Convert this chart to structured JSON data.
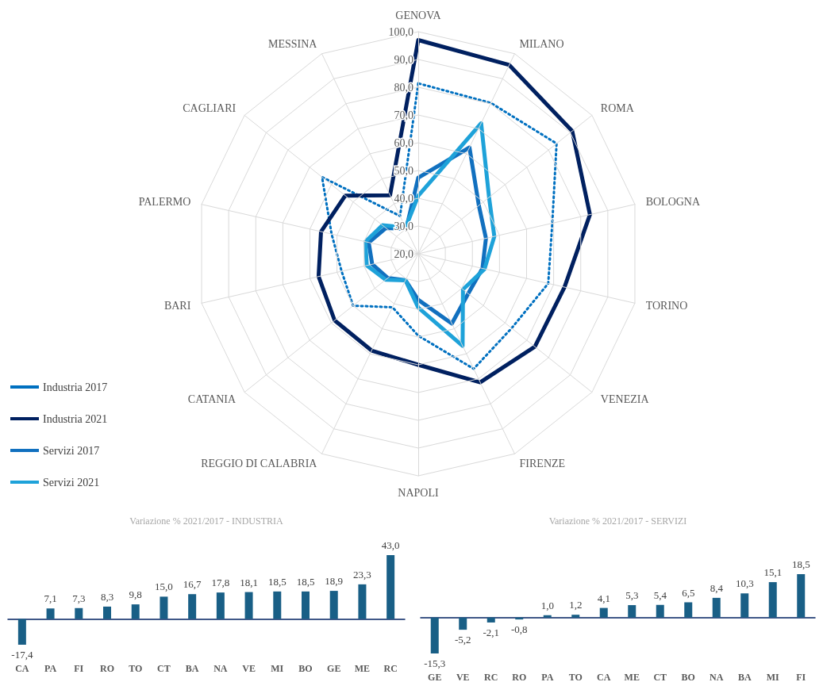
{
  "chart_data": [
    {
      "type": "radar",
      "categories": [
        "GENOVA",
        "MILANO",
        "ROMA",
        "BOLOGNA",
        "TORINO",
        "VENEZIA",
        "FIRENZE",
        "NAPOLI",
        "REGGIO DI CALABRIA",
        "CATANIA",
        "BARI",
        "PALERMO",
        "CAGLIARI",
        "MESSINA"
      ],
      "ylim": [
        20,
        100
      ],
      "yticks": [
        {
          "value": 20,
          "label": "20,0"
        },
        {
          "value": 30,
          "label": "30,0"
        },
        {
          "value": 40,
          "label": "40,0"
        },
        {
          "value": 50,
          "label": "50,0"
        },
        {
          "value": 60,
          "label": "60,0"
        },
        {
          "value": 70,
          "label": "70,0"
        },
        {
          "value": 80,
          "label": "80,0"
        },
        {
          "value": 90,
          "label": "90,0"
        },
        {
          "value": 100,
          "label": "100,0"
        }
      ],
      "grid": true,
      "legend": "left",
      "marker": "none",
      "series": [
        {
          "name": "Industria 2017",
          "color": "#0070c0",
          "line_style": "dotted",
          "values": [
            81.4,
            80.3,
            83.7,
            69.5,
            68,
            63,
            66,
            49.5,
            41.4,
            50,
            48.3,
            52,
            64.3,
            35.1
          ]
        },
        {
          "name": "Industria 2021",
          "color": "#002060",
          "line_style": "solid",
          "values": [
            97,
            95.5,
            90.9,
            83.4,
            74,
            73.7,
            71.4,
            60,
            58.7,
            58.5,
            56.8,
            55.9,
            53.6,
            43.4
          ]
        },
        {
          "name": "Servizi 2017",
          "color": "#1170bf",
          "line_style": "solid",
          "values": [
            47.4,
            62.5,
            47.9,
            45,
            43.7,
            43,
            47.9,
            36.6,
            30.6,
            34,
            37,
            38.3,
            34.9,
            30
          ]
        },
        {
          "name": "Servizi 2021",
          "color": "#1ea2d9",
          "line_style": "solid",
          "values": [
            40.9,
            72.2,
            52.6,
            48.1,
            44.5,
            40.6,
            56.8,
            39.4,
            30.6,
            35,
            39,
            39.5,
            36.5,
            30.5
          ]
        }
      ]
    },
    {
      "type": "bar",
      "title": "Variazione % 2021/2017 - INDUSTRIA",
      "categories": [
        "CA",
        "PA",
        "FI",
        "RO",
        "TO",
        "CT",
        "BA",
        "NA",
        "VE",
        "MI",
        "BO",
        "GE",
        "ME",
        "RC"
      ],
      "color": "#195f86",
      "values": [
        -17.4,
        7.1,
        7.3,
        8.3,
        9.8,
        15.0,
        16.7,
        17.8,
        18.1,
        18.5,
        18.5,
        18.9,
        23.3,
        43.0
      ],
      "value_labels": [
        "-17,4",
        "7,1",
        "7,3",
        "8,3",
        "9,8",
        "15,0",
        "16,7",
        "17,8",
        "18,1",
        "18,5",
        "18,5",
        "18,9",
        "23,3",
        "43,0"
      ]
    },
    {
      "type": "bar",
      "title": "Variazione % 2021/2017 - SERVIZI",
      "categories": [
        "GE",
        "VE",
        "RC",
        "RO",
        "PA",
        "TO",
        "CA",
        "ME",
        "CT",
        "BO",
        "NA",
        "BA",
        "MI",
        "FI"
      ],
      "color": "#195f86",
      "values": [
        -15.3,
        -5.2,
        -2.1,
        -0.8,
        1.0,
        1.2,
        4.1,
        5.3,
        5.4,
        6.5,
        8.4,
        10.3,
        15.1,
        18.5
      ],
      "value_labels": [
        "-15,3",
        "-5,2",
        "-2,1",
        "-0,8",
        "1,0",
        "1,2",
        "4,1",
        "5,3",
        "5,4",
        "6,5",
        "8,4",
        "10,3",
        "15,1",
        "18,5"
      ]
    }
  ]
}
